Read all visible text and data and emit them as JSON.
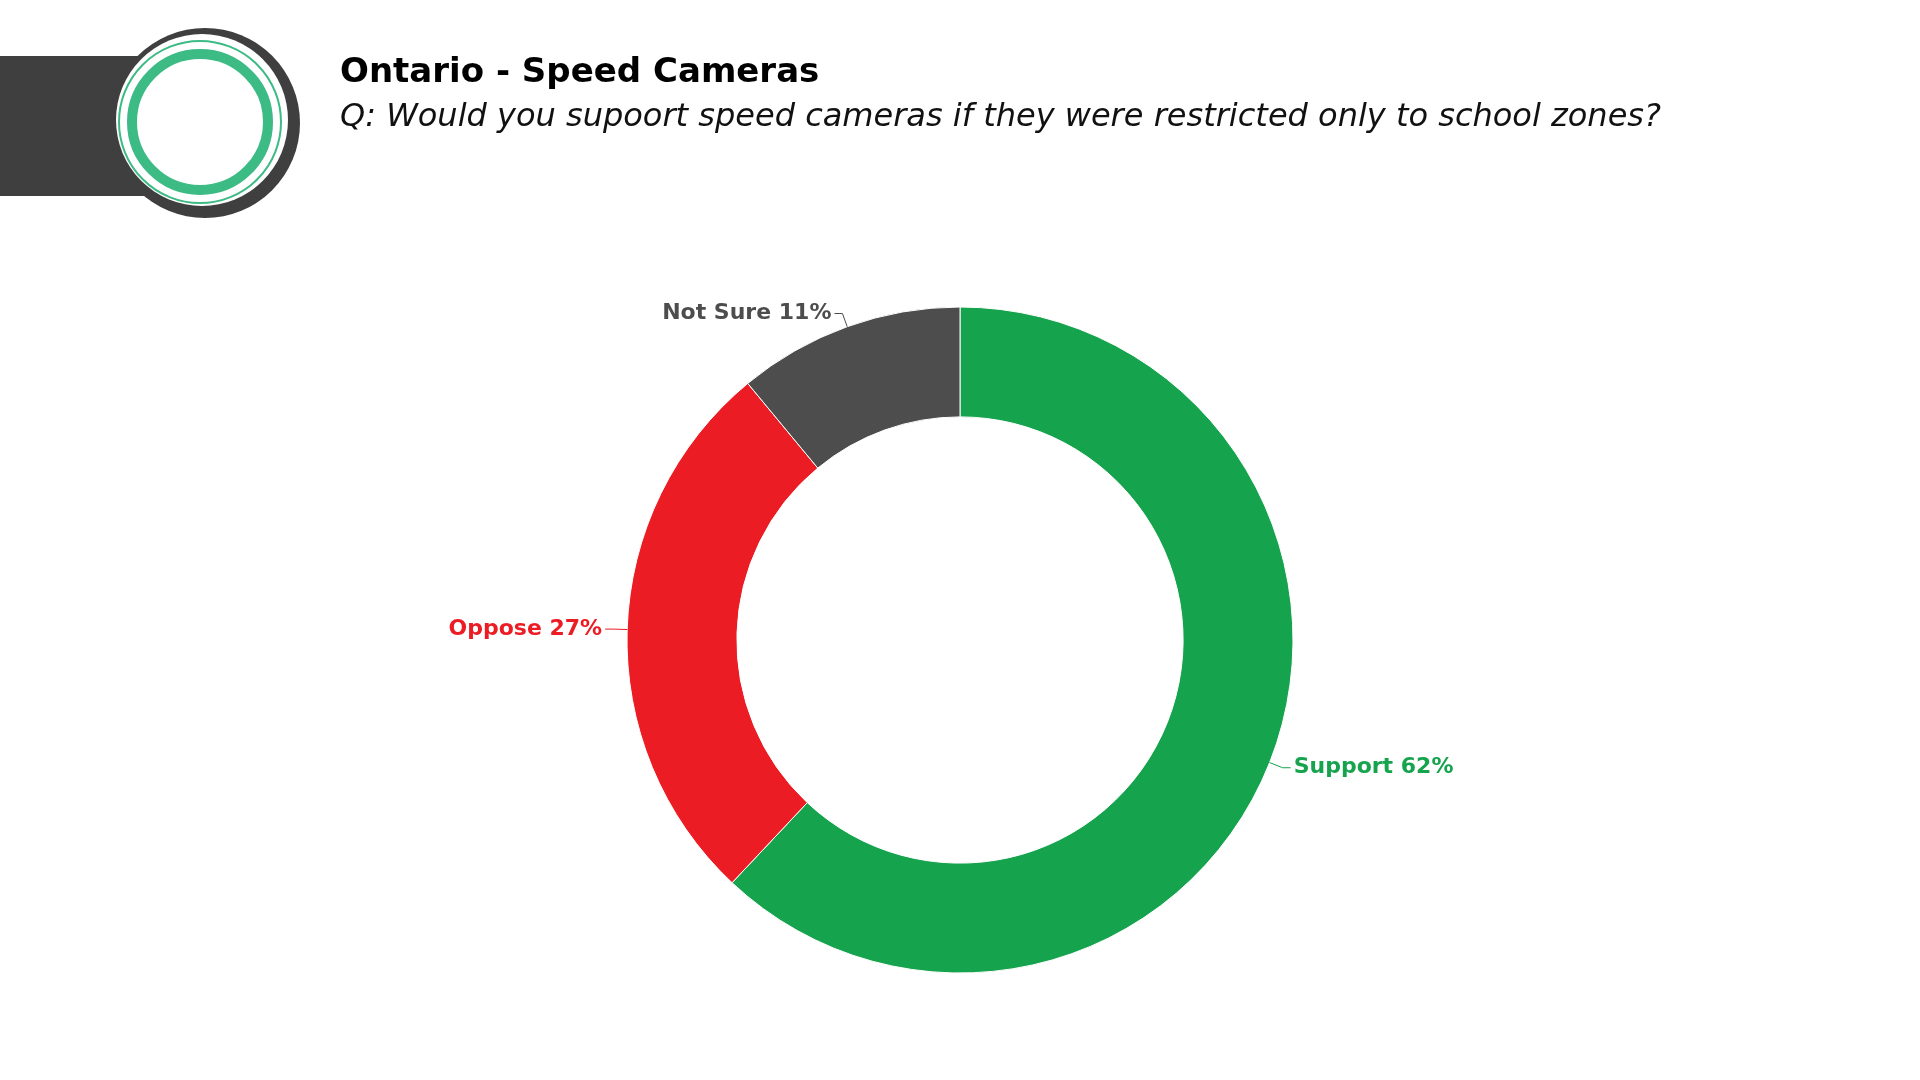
{
  "chart_data": {
    "type": "donut",
    "title": "Ontario - Speed Cameras",
    "subtitle": "Q: Would you supoort speed cameras if they were restricted only to school zones?",
    "categories": [
      "Support",
      "Oppose",
      "Not Sure"
    ],
    "values": [
      62,
      27,
      11
    ],
    "value_labels": [
      "62%",
      "27%",
      "11%"
    ],
    "colors": [
      "#16a34e",
      "#ec1c24",
      "#4d4d4d"
    ],
    "legend": false
  }
}
